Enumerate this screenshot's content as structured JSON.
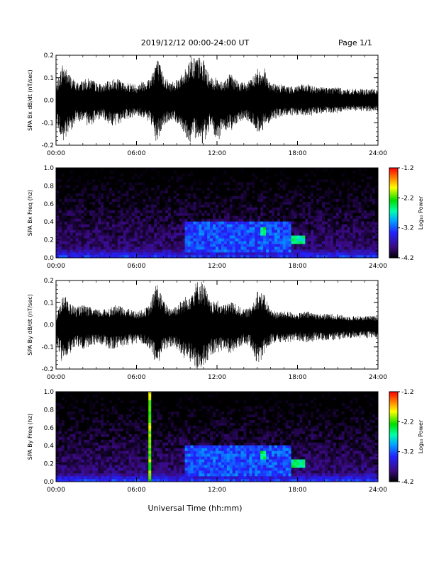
{
  "header": {
    "title": "2019/12/12  00:00-24:00 UT",
    "page": "Page 1/1"
  },
  "footer": {
    "xlabel": "Universal Time (hh:mm)"
  },
  "chart_data": [
    {
      "type": "line",
      "ylabel": "SPA Bx dB/dt (nT/sec)",
      "xlim": [
        0,
        24
      ],
      "ylim": [
        -0.2,
        0.2
      ],
      "y_ticks": [
        "-0.2",
        "-0.1",
        "0.0",
        "0.1",
        "0.2"
      ],
      "x_ticks": [
        "00:00",
        "06:00",
        "12:00",
        "18:00",
        "24:00"
      ],
      "series": [
        {
          "envelope_hours": [
            0,
            0.5,
            1,
            1.5,
            2,
            2.5,
            3,
            3.5,
            4,
            4.5,
            5,
            5.5,
            6,
            6.5,
            7,
            7.5,
            8,
            8.5,
            9,
            9.5,
            10,
            10.5,
            11,
            11.5,
            12,
            12.5,
            13,
            13.5,
            14,
            14.5,
            15,
            15.5,
            16,
            16.5,
            17,
            17.5,
            18,
            18.5,
            19,
            19.5,
            20,
            20.5,
            21,
            21.5,
            22,
            22.5,
            23,
            23.5,
            24
          ],
          "envelope_max": [
            0.06,
            0.17,
            0.12,
            0.08,
            0.09,
            0.1,
            0.08,
            0.07,
            0.09,
            0.1,
            0.08,
            0.08,
            0.07,
            0.09,
            0.1,
            0.2,
            0.12,
            0.08,
            0.1,
            0.12,
            0.2,
            0.2,
            0.18,
            0.1,
            0.1,
            0.09,
            0.12,
            0.09,
            0.08,
            0.09,
            0.14,
            0.15,
            0.08,
            0.07,
            0.07,
            0.06,
            0.07,
            0.07,
            0.07,
            0.06,
            0.06,
            0.06,
            0.06,
            0.05,
            0.05,
            0.05,
            0.05,
            0.05,
            0.05
          ],
          "envelope_min": [
            -0.1,
            -0.2,
            -0.15,
            -0.09,
            -0.1,
            -0.12,
            -0.09,
            -0.08,
            -0.11,
            -0.12,
            -0.09,
            -0.08,
            -0.07,
            -0.08,
            -0.1,
            -0.2,
            -0.12,
            -0.09,
            -0.1,
            -0.14,
            -0.2,
            -0.16,
            -0.2,
            -0.12,
            -0.2,
            -0.13,
            -0.14,
            -0.1,
            -0.09,
            -0.1,
            -0.15,
            -0.13,
            -0.09,
            -0.08,
            -0.07,
            -0.07,
            -0.07,
            -0.07,
            -0.07,
            -0.06,
            -0.06,
            -0.06,
            -0.06,
            -0.05,
            -0.05,
            -0.05,
            -0.05,
            -0.05,
            -0.05
          ]
        }
      ]
    },
    {
      "type": "heatmap",
      "ylabel": "SPA Bx Freq (hz)",
      "xlim": [
        0,
        24
      ],
      "ylim": [
        0,
        1.0
      ],
      "y_ticks": [
        "0.0",
        "0.2",
        "0.4",
        "0.6",
        "0.8",
        "1.0"
      ],
      "x_ticks": [
        "00:00",
        "06:00",
        "12:00",
        "18:00",
        "24:00"
      ],
      "colorbar": {
        "label": "Log₁₀ Power",
        "range": [
          -4.2,
          -1.2
        ],
        "ticks": [
          "-1.2",
          "-2.2",
          "-3.2",
          "-4.2"
        ]
      },
      "features": [
        {
          "x_hours": [
            9.5,
            17.5
          ],
          "y_hz": [
            0.05,
            0.4
          ],
          "level": -3.2
        },
        {
          "x_hours": [
            15.2,
            15.6
          ],
          "y_hz": [
            0.25,
            0.35
          ],
          "level": -2.5
        },
        {
          "x_hours": [
            17.5,
            18.5
          ],
          "y_hz": [
            0.15,
            0.25
          ],
          "level": -2.5
        }
      ]
    },
    {
      "type": "line",
      "ylabel": "SPA By dB/dt (nT/sec)",
      "xlim": [
        0,
        24
      ],
      "ylim": [
        -0.2,
        0.2
      ],
      "y_ticks": [
        "-0.2",
        "-0.1",
        "0.0",
        "0.1",
        "0.2"
      ],
      "x_ticks": [
        "00:00",
        "06:00",
        "12:00",
        "18:00",
        "24:00"
      ],
      "series": [
        {
          "envelope_hours": [
            0,
            0.5,
            1,
            1.5,
            2,
            2.5,
            3,
            3.5,
            4,
            4.5,
            5,
            5.5,
            6,
            6.5,
            7,
            7.5,
            8,
            8.5,
            9,
            9.5,
            10,
            10.5,
            11,
            11.5,
            12,
            12.5,
            13,
            13.5,
            14,
            14.5,
            15,
            15.5,
            16,
            16.5,
            17,
            17.5,
            18,
            18.5,
            19,
            19.5,
            20,
            20.5,
            21,
            21.5,
            22,
            22.5,
            23,
            23.5,
            24
          ],
          "envelope_max": [
            0.02,
            0.15,
            0.1,
            0.08,
            0.09,
            0.08,
            0.07,
            0.07,
            0.08,
            0.09,
            0.08,
            0.07,
            0.06,
            0.07,
            0.09,
            0.2,
            0.11,
            0.08,
            0.09,
            0.12,
            0.15,
            0.2,
            0.2,
            0.1,
            0.11,
            0.09,
            0.11,
            0.09,
            0.07,
            0.08,
            0.16,
            0.14,
            0.07,
            0.06,
            0.06,
            0.06,
            0.05,
            0.06,
            0.06,
            0.05,
            0.05,
            0.05,
            0.05,
            0.04,
            0.04,
            0.04,
            0.04,
            0.04,
            0.04
          ],
          "envelope_min": [
            -0.08,
            -0.18,
            -0.13,
            -0.1,
            -0.11,
            -0.1,
            -0.09,
            -0.09,
            -0.12,
            -0.11,
            -0.1,
            -0.09,
            -0.09,
            -0.09,
            -0.11,
            -0.2,
            -0.12,
            -0.1,
            -0.11,
            -0.15,
            -0.17,
            -0.2,
            -0.2,
            -0.14,
            -0.13,
            -0.11,
            -0.13,
            -0.11,
            -0.09,
            -0.1,
            -0.2,
            -0.13,
            -0.09,
            -0.08,
            -0.08,
            -0.08,
            -0.07,
            -0.08,
            -0.08,
            -0.07,
            -0.07,
            -0.07,
            -0.07,
            -0.06,
            -0.06,
            -0.06,
            -0.06,
            -0.06,
            -0.06
          ]
        }
      ]
    },
    {
      "type": "heatmap",
      "ylabel": "SPA By Freq (hz)",
      "xlim": [
        0,
        24
      ],
      "ylim": [
        0,
        1.0
      ],
      "y_ticks": [
        "0.0",
        "0.2",
        "0.4",
        "0.6",
        "0.8",
        "1.0"
      ],
      "x_ticks": [
        "00:00",
        "06:00",
        "12:00",
        "18:00",
        "24:00"
      ],
      "colorbar": {
        "label": "Log₁₀ Power",
        "range": [
          -4.2,
          -1.2
        ],
        "ticks": [
          "-1.2",
          "-2.2",
          "-3.2",
          "-4.2"
        ]
      },
      "features": [
        {
          "x_hours": [
            6.9,
            7.0
          ],
          "y_hz": [
            0.0,
            1.0
          ],
          "level": -2.0
        },
        {
          "x_hours": [
            9.5,
            17.5
          ],
          "y_hz": [
            0.05,
            0.4
          ],
          "level": -3.2
        },
        {
          "x_hours": [
            15.2,
            15.6
          ],
          "y_hz": [
            0.25,
            0.35
          ],
          "level": -2.5
        },
        {
          "x_hours": [
            17.5,
            18.5
          ],
          "y_hz": [
            0.15,
            0.25
          ],
          "level": -2.5
        }
      ]
    }
  ]
}
